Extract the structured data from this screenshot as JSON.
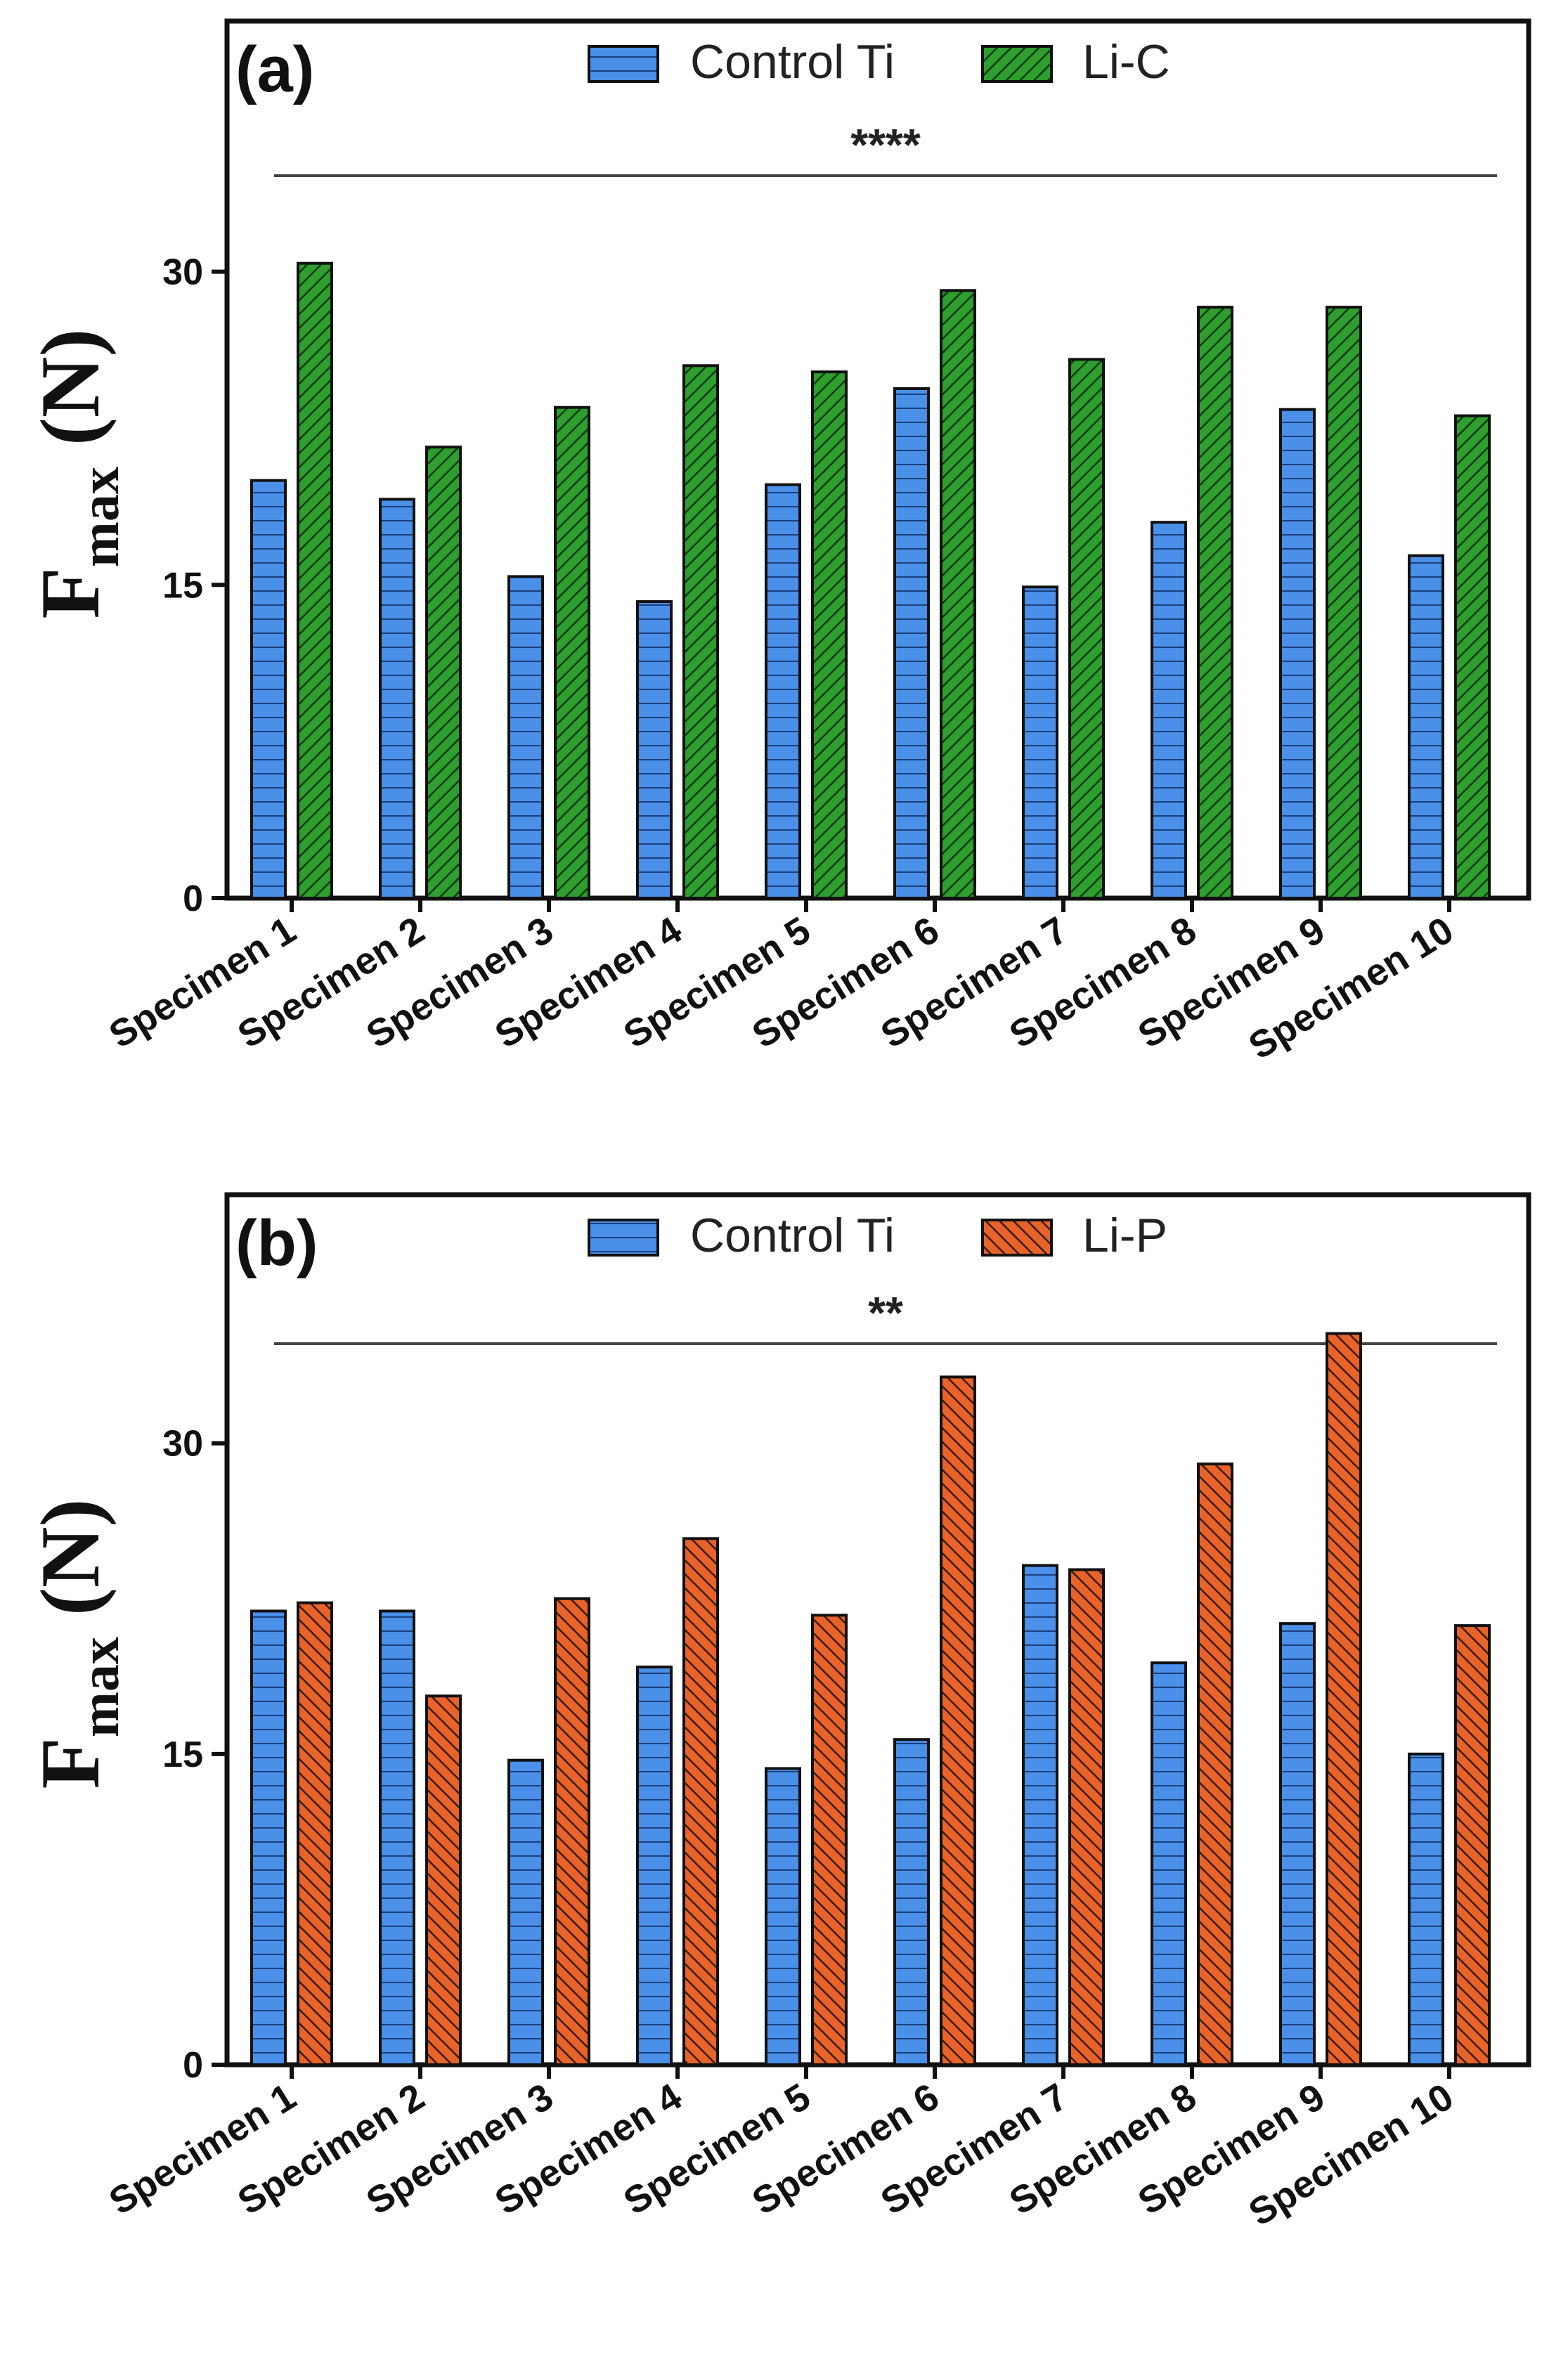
{
  "colors": {
    "control": "#4a8fe8",
    "lic": "#2e9e2e",
    "lip": "#e8632a",
    "stroke": "#111111"
  },
  "chart_data": [
    {
      "type": "bar",
      "panel_label": "(a)",
      "categories": [
        "Specimen 1",
        "Specimen 2",
        "Specimen 3",
        "Specimen 4",
        "Specimen 5",
        "Specimen 6",
        "Specimen 7",
        "Specimen 8",
        "Specimen 9",
        "Specimen 10"
      ],
      "series": [
        {
          "name": "Control Ti",
          "values": [
            20.0,
            19.1,
            15.4,
            14.2,
            19.8,
            24.4,
            14.9,
            18.0,
            23.4,
            16.4
          ]
        },
        {
          "name": "Li-C",
          "values": [
            30.4,
            21.6,
            23.5,
            25.5,
            25.2,
            29.1,
            25.8,
            28.3,
            28.3,
            23.1
          ]
        }
      ],
      "ylabel_main": "F",
      "ylabel_sub": "max",
      "ylabel_unit": "(N)",
      "yticks": [
        "0",
        "15",
        "30"
      ],
      "ylim": [
        0,
        42
      ],
      "significance": "****",
      "legend_position": "top-center"
    },
    {
      "type": "bar",
      "panel_label": "(b)",
      "categories": [
        "Specimen 1",
        "Specimen 2",
        "Specimen 3",
        "Specimen 4",
        "Specimen 5",
        "Specimen 6",
        "Specimen 7",
        "Specimen 8",
        "Specimen 9",
        "Specimen 10"
      ],
      "series": [
        {
          "name": "Control Ti",
          "values": [
            21.9,
            21.9,
            14.7,
            19.2,
            14.3,
            15.7,
            24.1,
            19.4,
            21.3,
            15.0
          ]
        },
        {
          "name": "Li-P",
          "values": [
            22.3,
            17.8,
            22.5,
            25.4,
            21.7,
            33.2,
            23.9,
            29.0,
            35.3,
            21.2
          ]
        }
      ],
      "ylabel_main": "F",
      "ylabel_sub": "max",
      "ylabel_unit": "(N)",
      "yticks": [
        "0",
        "15",
        "30"
      ],
      "ylim": [
        0,
        42
      ],
      "significance": "**",
      "legend_position": "top-center"
    }
  ]
}
